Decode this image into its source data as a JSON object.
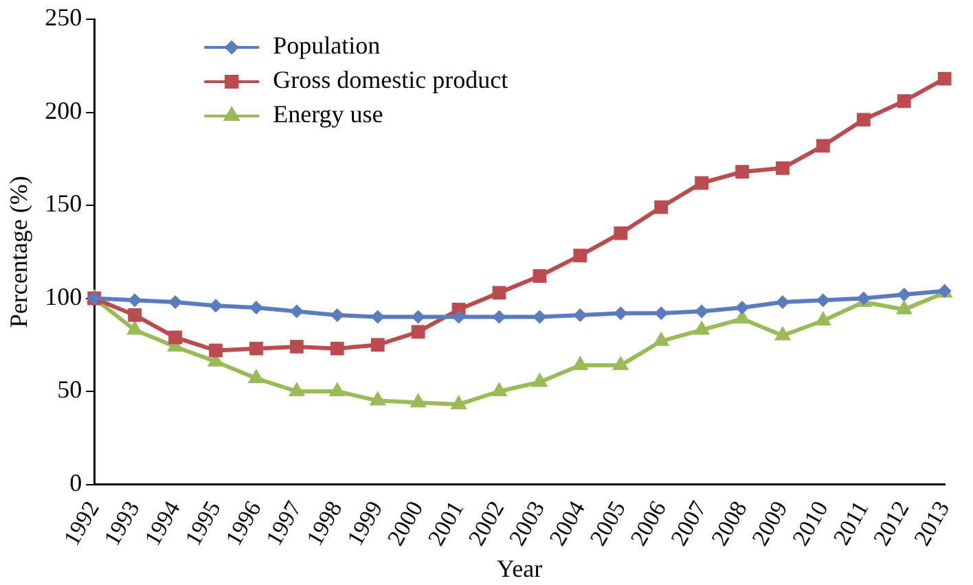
{
  "chart_data": {
    "type": "line",
    "xlabel": "Year",
    "ylabel": "Percentage (%)",
    "categories": [
      "1992",
      "1993",
      "1994",
      "1995",
      "1996",
      "1997",
      "1998",
      "1999",
      "2000",
      "2001",
      "2002",
      "2003",
      "2004",
      "2005",
      "2006",
      "2007",
      "2008",
      "2009",
      "2010",
      "2011",
      "2012",
      "2013"
    ],
    "series": [
      {
        "name": "Population",
        "color": "#5b7bbf",
        "marker": "diamond",
        "values": [
          100,
          99,
          98,
          96,
          95,
          93,
          91,
          90,
          90,
          90,
          90,
          90,
          91,
          92,
          92,
          93,
          95,
          98,
          99,
          100,
          102,
          104
        ]
      },
      {
        "name": "Gross domestic product",
        "color": "#bc4b4f",
        "marker": "square",
        "values": [
          100,
          91,
          79,
          72,
          73,
          74,
          73,
          75,
          82,
          94,
          103,
          112,
          123,
          135,
          149,
          162,
          168,
          170,
          182,
          196,
          206,
          218
        ]
      },
      {
        "name": "Energy use",
        "color": "#9bbb59",
        "marker": "triangle",
        "values": [
          100,
          83,
          74,
          66,
          57,
          50,
          50,
          45,
          44,
          43,
          50,
          55,
          64,
          64,
          77,
          83,
          89,
          80,
          88,
          98,
          94,
          103
        ]
      }
    ],
    "ylim": [
      0,
      250
    ],
    "yticks": [
      0,
      50,
      100,
      150,
      200,
      250
    ],
    "grid": false,
    "legend": "top left"
  }
}
